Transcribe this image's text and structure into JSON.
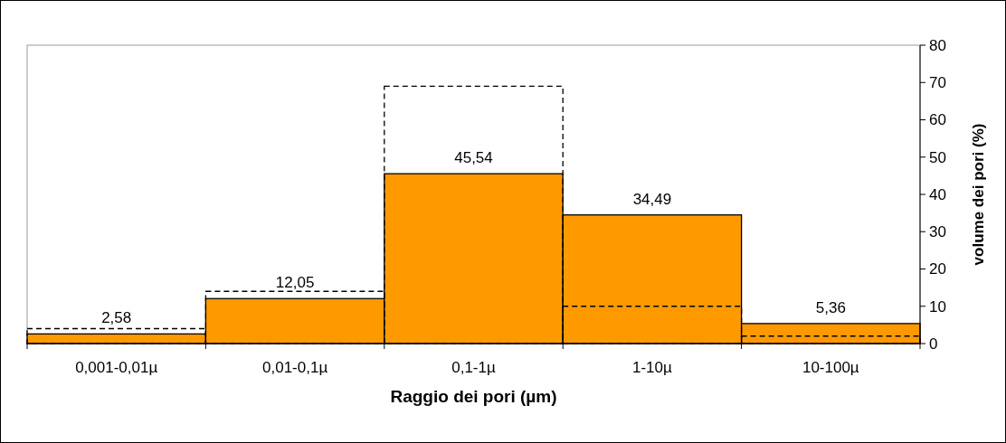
{
  "chart_data": {
    "type": "bar",
    "xlabel": "Raggio dei pori (µm)",
    "y2label": "volume dei pori (%)",
    "categories": [
      "0,001-0,01µ",
      "0,01-0,1µ",
      "0,1-1µ",
      "1-10µ",
      "10-100µ"
    ],
    "series": [
      {
        "color": "#ff9900",
        "axis": "y2",
        "values": [
          2.58,
          12.05,
          45.54,
          34.49,
          5.36
        ],
        "value_labels": [
          "2,58",
          "12,05",
          "45,54",
          "34,49",
          "5,36"
        ]
      },
      {
        "color": "#000000",
        "axis": "y2",
        "line_style": "dashed",
        "values": [
          4,
          14,
          69,
          10,
          2
        ]
      }
    ],
    "y2lim": [
      0,
      80
    ],
    "y2ticks": [
      0,
      10,
      20,
      30,
      40,
      50,
      60,
      70,
      80
    ],
    "grid": false
  }
}
